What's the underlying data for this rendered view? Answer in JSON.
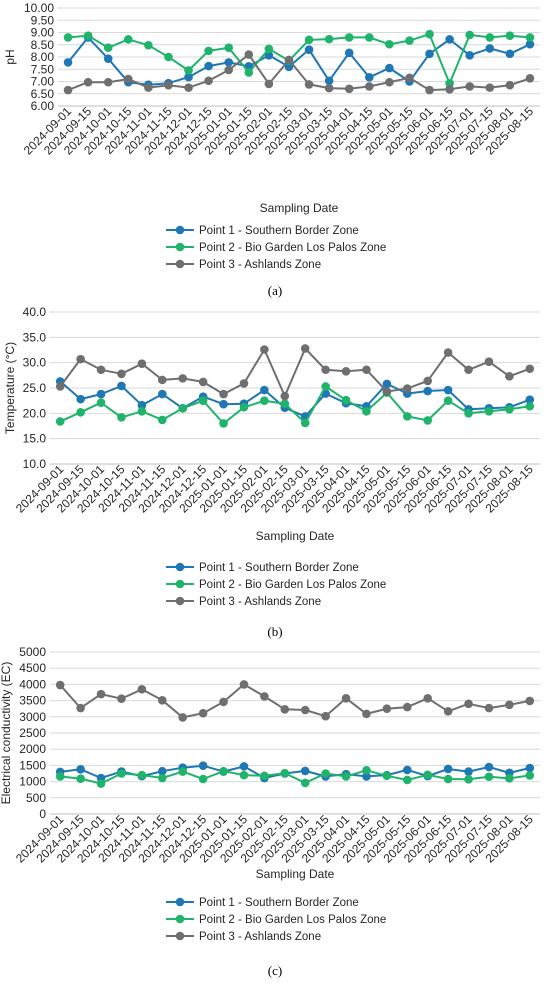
{
  "colors": {
    "point1": "#1f77b4",
    "point2": "#1fb36b",
    "point3": "#6f6f72",
    "grid": "#d9d9d9",
    "axis": "#bfbfbf"
  },
  "captions": [
    "(a)",
    "(b)",
    "(c)"
  ],
  "chart_data": [
    {
      "type": "line",
      "title": "",
      "xlabel": "Sampling Date",
      "ylabel": "pH",
      "ylim": [
        6.0,
        10.0
      ],
      "yticks": [
        "6.00",
        "6.50",
        "7.00",
        "7.50",
        "8.00",
        "8.50",
        "9.00",
        "9.50",
        "10.00"
      ],
      "grid": true,
      "legend": "bottom",
      "x": [
        "2024-09-01",
        "2024-09-15",
        "2024-10-01",
        "2024-10-15",
        "2024-11-01",
        "2024-11-15",
        "2024-12-01",
        "2024-12-15",
        "2025-01-01",
        "2025-01-15",
        "2025-02-01",
        "2025-02-15",
        "2025-03-01",
        "2025-03-15",
        "2025-04-01",
        "2025-04-15",
        "2025-05-01",
        "2025-05-15",
        "2025-06-01",
        "2025-06-15",
        "2025-07-01",
        "2025-07-15",
        "2025-08-01",
        "2025-08-15"
      ],
      "series": [
        {
          "name": "Point 1 - Southern Border Zone",
          "values": [
            7.78,
            8.8,
            7.93,
            6.97,
            6.87,
            6.93,
            7.18,
            7.63,
            7.78,
            7.62,
            8.07,
            7.6,
            8.3,
            7.03,
            8.17,
            7.17,
            7.55,
            7.0,
            8.13,
            8.72,
            8.07,
            8.35,
            8.13,
            8.52
          ]
        },
        {
          "name": "Point 2 - Bio Garden Los Palos Zone",
          "values": [
            8.8,
            8.87,
            8.38,
            8.72,
            8.48,
            8.0,
            7.45,
            8.25,
            8.38,
            7.37,
            8.33,
            7.85,
            8.7,
            8.73,
            8.8,
            8.8,
            8.52,
            8.67,
            8.93,
            6.92,
            8.9,
            8.8,
            8.87,
            8.8
          ]
        },
        {
          "name": "Point 3 - Ashlands Zone",
          "values": [
            6.65,
            6.97,
            6.97,
            7.1,
            6.75,
            6.85,
            6.75,
            7.03,
            7.47,
            8.1,
            6.9,
            7.88,
            6.88,
            6.73,
            6.7,
            6.8,
            6.97,
            7.15,
            6.65,
            6.68,
            6.8,
            6.75,
            6.85,
            7.13
          ]
        }
      ]
    },
    {
      "type": "line",
      "title": "",
      "xlabel": "Sampling Date",
      "ylabel": "Temperature (°C)",
      "ylim": [
        10.0,
        40.0
      ],
      "yticks": [
        "10.0",
        "15.0",
        "20.0",
        "25.0",
        "30.0",
        "35.0",
        "40.0"
      ],
      "grid": true,
      "legend": "bottom",
      "x": [
        "2024-09-01",
        "2024-09-15",
        "2024-10-01",
        "2024-10-15",
        "2024-11-01",
        "2024-11-15",
        "2024-12-01",
        "2024-12-15",
        "2025-01-01",
        "2025-01-15",
        "2025-02-01",
        "2025-02-15",
        "2025-03-01",
        "2025-03-15",
        "2025-04-01",
        "2025-04-15",
        "2025-05-01",
        "2025-05-15",
        "2025-06-01",
        "2025-06-15",
        "2025-07-01",
        "2025-07-15",
        "2025-08-01",
        "2025-08-15"
      ],
      "series": [
        {
          "name": "Point 1 - Southern Border Zone",
          "values": [
            26.3,
            22.8,
            23.8,
            25.4,
            21.6,
            23.8,
            21.0,
            23.3,
            21.8,
            21.9,
            24.6,
            21.1,
            19.4,
            23.9,
            22.0,
            21.4,
            25.8,
            23.9,
            24.4,
            24.6,
            20.8,
            21.0,
            21.2,
            22.7
          ]
        },
        {
          "name": "Point 2 - Bio Garden Los Palos Zone",
          "values": [
            18.4,
            20.2,
            22.1,
            19.2,
            20.4,
            18.7,
            21.0,
            22.5,
            18.0,
            21.2,
            22.5,
            21.9,
            18.1,
            25.3,
            22.6,
            20.4,
            24.1,
            19.4,
            18.6,
            22.5,
            20.0,
            20.4,
            20.8,
            21.4
          ]
        },
        {
          "name": "Point 3 - Ashlands Zone",
          "values": [
            25.3,
            30.7,
            28.6,
            27.8,
            29.8,
            26.6,
            26.9,
            26.2,
            23.8,
            25.9,
            32.6,
            23.4,
            32.8,
            28.6,
            28.3,
            28.6,
            24.3,
            24.9,
            26.4,
            32.0,
            28.6,
            30.2,
            27.3,
            28.8
          ]
        }
      ]
    },
    {
      "type": "line",
      "title": "",
      "xlabel": "Sampling Date",
      "ylabel": "Electrical conductivity (EC)",
      "ylim": [
        0,
        5000
      ],
      "yticks": [
        "0",
        "500",
        "1000",
        "1500",
        "2000",
        "2500",
        "3000",
        "3500",
        "4000",
        "4500",
        "5000"
      ],
      "grid": true,
      "legend": "bottom",
      "x": [
        "2024-09-01",
        "2024-09-15",
        "2024-10-01",
        "2024-10-15",
        "2024-11-01",
        "2024-11-15",
        "2024-12-01",
        "2024-12-15",
        "2025-01-01",
        "2025-01-15",
        "2025-02-01",
        "2025-02-15",
        "2025-03-01",
        "2025-03-15",
        "2025-04-01",
        "2025-04-15",
        "2025-05-01",
        "2025-05-15",
        "2025-06-01",
        "2025-06-15",
        "2025-07-01",
        "2025-07-15",
        "2025-08-01",
        "2025-08-15"
      ],
      "series": [
        {
          "name": "Point 1 - Southern Border Zone",
          "values": [
            1300,
            1380,
            1110,
            1310,
            1170,
            1320,
            1430,
            1490,
            1310,
            1470,
            1110,
            1250,
            1330,
            1160,
            1230,
            1160,
            1200,
            1360,
            1170,
            1390,
            1310,
            1450,
            1270,
            1420
          ]
        },
        {
          "name": "Point 2 - Bio Garden Los Palos Zone",
          "values": [
            1160,
            1090,
            940,
            1250,
            1200,
            1110,
            1310,
            1080,
            1320,
            1200,
            1180,
            1260,
            960,
            1250,
            1160,
            1350,
            1180,
            1050,
            1210,
            1080,
            1070,
            1150,
            1100,
            1190
          ]
        },
        {
          "name": "Point 3 - Ashlands Zone",
          "values": [
            3980,
            3270,
            3700,
            3560,
            3850,
            3510,
            2980,
            3110,
            3460,
            4000,
            3630,
            3230,
            3210,
            3020,
            3570,
            3090,
            3250,
            3300,
            3570,
            3170,
            3400,
            3270,
            3370,
            3490
          ]
        }
      ]
    }
  ]
}
